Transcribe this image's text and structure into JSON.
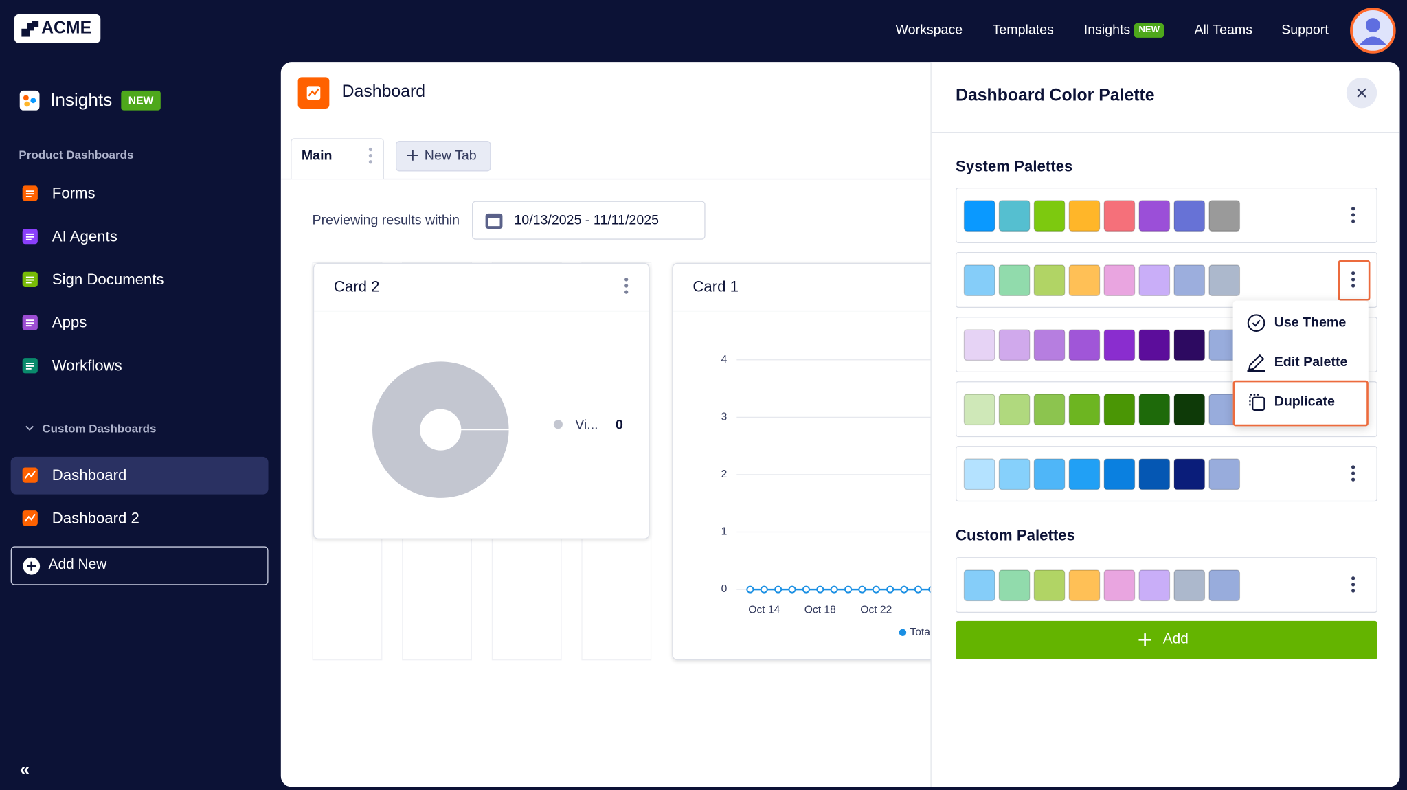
{
  "topnav": {
    "logo": "ACME",
    "items": [
      "Workspace",
      "Templates",
      "Insights",
      "All Teams",
      "Support"
    ],
    "badge": "NEW"
  },
  "sidebar": {
    "title": "Insights",
    "badge": "NEW",
    "product_title": "Product Dashboards",
    "product_items": [
      "Forms",
      "AI Agents",
      "Sign Documents",
      "Apps",
      "Workflows"
    ],
    "custom_title": "Custom Dashboards",
    "custom_items": [
      "Dashboard",
      "Dashboard 2"
    ],
    "add_new": "Add New",
    "collapse": "«"
  },
  "main": {
    "title": "Dashboard",
    "tab": "Main",
    "new_tab": "New Tab",
    "preview_label": "Previewing results within",
    "date_range": "10/13/2025 - 11/11/2025",
    "card2": {
      "title": "Card 2",
      "legend_name": "Vi...",
      "legend_value": 0
    },
    "card1": {
      "title": "Card 1",
      "chart": {
        "type": "line",
        "categories": [
          null,
          "Oct 14",
          null,
          null,
          null,
          "Oct 18",
          null,
          null,
          null,
          "Oct 22",
          null,
          null,
          null,
          "Oc"
        ],
        "values": [
          0,
          0,
          0,
          0,
          0,
          0,
          0,
          0,
          0,
          0,
          0,
          0,
          0,
          0
        ],
        "ylim": [
          0,
          4
        ],
        "yticks": [
          0,
          1,
          2,
          3,
          4
        ],
        "grid": true,
        "color": "#1a8fe3",
        "legend": "Tota"
      }
    }
  },
  "panel": {
    "title": "Dashboard Color Palette",
    "system_title": "System Palettes",
    "system_palettes": [
      [
        "#0a99ff",
        "#55bfd0",
        "#7dc90f",
        "#ffb629",
        "#f5707a",
        "#9b4fd8",
        "#6772d6",
        "#9a9a9a"
      ],
      [
        "#85cdf9",
        "#91dbac",
        "#b1d465",
        "#ffc056",
        "#e9a5e0",
        "#c9aef8",
        "#9caedd",
        "#acb8cc"
      ],
      [
        "#e6d3f5",
        "#d0a9ec",
        "#b67ee0",
        "#a056d8",
        "#8a2dcf",
        "#5c0d9b",
        "#2d0a61",
        "#98acdc"
      ],
      [
        "#cfe8b8",
        "#b0d97e",
        "#8cc44f",
        "#6db521",
        "#4a9605",
        "#1e6a0a",
        "#0e3a08",
        "#98acdc"
      ],
      [
        "#b4e2ff",
        "#86d0fb",
        "#4fb6f8",
        "#21a0f5",
        "#0a80e0",
        "#0557b3",
        "#0a1d7a",
        "#98acdc"
      ]
    ],
    "custom_title": "Custom Palettes",
    "custom_palettes": [
      [
        "#85cdf9",
        "#91dbac",
        "#b1d465",
        "#ffc056",
        "#e9a5e0",
        "#c9aef8",
        "#acb8cc",
        "#98acdc"
      ]
    ],
    "menu": [
      "Use Theme",
      "Edit Palette",
      "Duplicate"
    ],
    "add": "Add"
  }
}
